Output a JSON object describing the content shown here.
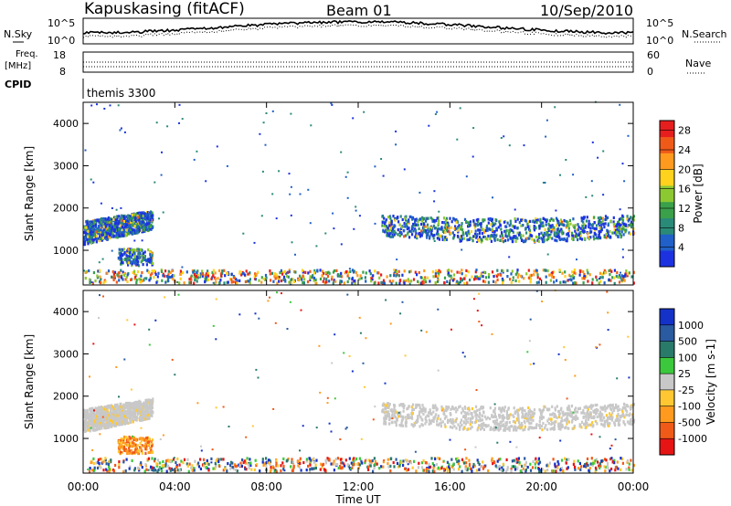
{
  "header": {
    "station": "Kapuskasing (fitACF)",
    "beam": "Beam 01",
    "date": "10/Sep/2010"
  },
  "top_panels": {
    "nsky_label": "N.Sky",
    "nsearch_label": "N.Search",
    "noise_ticks": [
      "10^5",
      "10^0"
    ],
    "freq_label_top": "Freq.",
    "freq_label_unit": "[MHz]",
    "freq_ticks": [
      "18",
      "8"
    ],
    "nave_label": "Nave",
    "nave_ticks": [
      "60",
      "0"
    ],
    "cpid_label": "CPID",
    "cpid_value": "themis 3300"
  },
  "colors": {
    "power": [
      "#1c32e0",
      "#2060c8",
      "#2a8a78",
      "#3aa04a",
      "#8cc832",
      "#ffd21e",
      "#ff9a1e",
      "#f05a19",
      "#e61e1e"
    ],
    "velocity": [
      "#e61414",
      "#f05a19",
      "#ff9a1e",
      "#ffc832",
      "#c8c8c8",
      "#3cc83c",
      "#2a7a6a",
      "#2a5aa0",
      "#1432c8"
    ]
  },
  "chart_data": [
    {
      "type": "heatmap",
      "title": "",
      "xlabel": "Time UT",
      "ylabel": "Slant Range [km]",
      "x_ticks": [
        "00:00",
        "04:00",
        "08:00",
        "12:00",
        "16:00",
        "20:00",
        "00:00"
      ],
      "xlim_hours": [
        0,
        24
      ],
      "y_ticks": [
        "1000",
        "2000",
        "3000",
        "4000"
      ],
      "ylim": [
        180,
        4500
      ],
      "colorbar_label": "Power [dB]",
      "colorbar_ticks": [
        "4",
        "8",
        "12",
        "16",
        "20",
        "24",
        "28"
      ],
      "colorbar_range": [
        0,
        30
      ],
      "echo_regions": [
        {
          "t": [
            0.0,
            3.0
          ],
          "range": [
            1100,
            1900
          ],
          "description": "sloped band"
        },
        {
          "t": [
            13.0,
            24.0
          ],
          "range": [
            1200,
            1800
          ],
          "description": "broad band"
        },
        {
          "t": [
            1.5,
            3.0
          ],
          "range": [
            600,
            1000
          ],
          "description": "patch"
        },
        {
          "t": [
            0.0,
            24.0
          ],
          "range": [
            180,
            500
          ],
          "description": "ground-near scatter"
        }
      ]
    },
    {
      "type": "heatmap",
      "title": "",
      "xlabel": "Time UT",
      "ylabel": "Slant Range [km]",
      "x_ticks": [
        "00:00",
        "04:00",
        "08:00",
        "12:00",
        "16:00",
        "20:00",
        "00:00"
      ],
      "xlim_hours": [
        0,
        24
      ],
      "y_ticks": [
        "1000",
        "2000",
        "3000",
        "4000"
      ],
      "ylim": [
        180,
        4500
      ],
      "colorbar_label": "Velocity [m s-1]",
      "colorbar_ticks": [
        "1000",
        "500",
        "100",
        "25",
        "-25",
        "-100",
        "-500",
        "-1000"
      ],
      "colorbar_range": [
        -1000,
        1000
      ],
      "echo_regions": [
        {
          "t": [
            0.0,
            3.0
          ],
          "range": [
            1100,
            1900
          ],
          "description": "near-zero velocity band"
        },
        {
          "t": [
            13.0,
            24.0
          ],
          "range": [
            1200,
            1800
          ],
          "description": "near-zero velocity band"
        },
        {
          "t": [
            1.5,
            3.0
          ],
          "range": [
            600,
            1000
          ],
          "description": "negative velocity patch"
        },
        {
          "t": [
            0.0,
            24.0
          ],
          "range": [
            180,
            500
          ],
          "description": "mixed scatter"
        }
      ]
    }
  ]
}
